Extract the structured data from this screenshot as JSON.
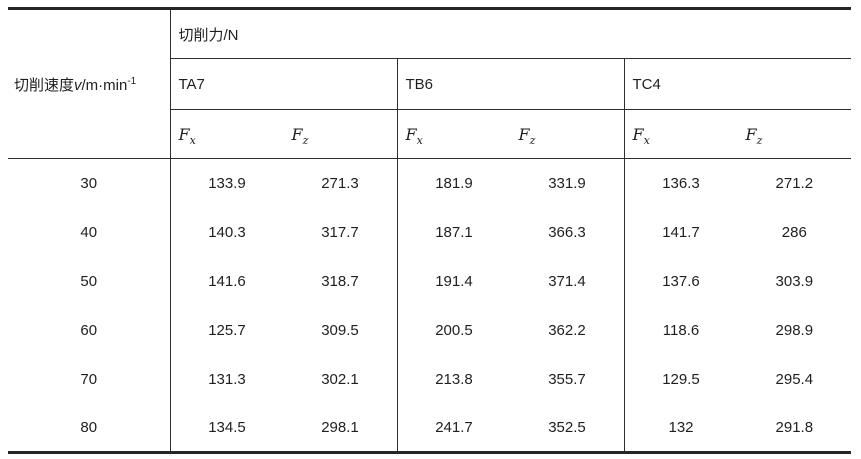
{
  "colors": {
    "background": "#ffffff",
    "text": "#1f1f1f",
    "line": "#2f2f2f",
    "line_strong": "#262626"
  },
  "table": {
    "speed_header": {
      "label": "切削速度",
      "symbol": "v",
      "unit": "/m·min",
      "exponent": "-1"
    },
    "force_header": "切削力/N",
    "materials": [
      "TA7",
      "TB6",
      "TC4"
    ],
    "force_components": [
      {
        "base": "F",
        "sub": "x"
      },
      {
        "base": "F",
        "sub": "z"
      }
    ],
    "rows": [
      {
        "speed": "30",
        "values": [
          "133.9",
          "271.3",
          "181.9",
          "331.9",
          "136.3",
          "271.2"
        ]
      },
      {
        "speed": "40",
        "values": [
          "140.3",
          "317.7",
          "187.1",
          "366.3",
          "141.7",
          "286"
        ]
      },
      {
        "speed": "50",
        "values": [
          "141.6",
          "318.7",
          "191.4",
          "371.4",
          "137.6",
          "303.9"
        ]
      },
      {
        "speed": "60",
        "values": [
          "125.7",
          "309.5",
          "200.5",
          "362.2",
          "118.6",
          "298.9"
        ]
      },
      {
        "speed": "70",
        "values": [
          "131.3",
          "302.1",
          "213.8",
          "355.7",
          "129.5",
          "295.4"
        ]
      },
      {
        "speed": "80",
        "values": [
          "134.5",
          "298.1",
          "241.7",
          "352.5",
          "132",
          "291.8"
        ]
      }
    ]
  },
  "chart_data": {
    "type": "table",
    "title": "切削力/N",
    "row_header": "切削速度v/m·min⁻¹",
    "x": [
      30,
      40,
      50,
      60,
      70,
      80
    ],
    "materials": [
      "TA7",
      "TB6",
      "TC4"
    ],
    "sub_columns": [
      "Fx",
      "Fz"
    ],
    "series": [
      {
        "name": "TA7 Fx",
        "values": [
          133.9,
          140.3,
          141.6,
          125.7,
          131.3,
          134.5
        ]
      },
      {
        "name": "TA7 Fz",
        "values": [
          271.3,
          317.7,
          318.7,
          309.5,
          302.1,
          298.1
        ]
      },
      {
        "name": "TB6 Fx",
        "values": [
          181.9,
          187.1,
          191.4,
          200.5,
          213.8,
          241.7
        ]
      },
      {
        "name": "TB6 Fz",
        "values": [
          331.9,
          366.3,
          371.4,
          362.2,
          355.7,
          352.5
        ]
      },
      {
        "name": "TC4 Fx",
        "values": [
          136.3,
          141.7,
          137.6,
          118.6,
          129.5,
          132
        ]
      },
      {
        "name": "TC4 Fz",
        "values": [
          271.2,
          286,
          303.9,
          298.9,
          295.4,
          291.8
        ]
      }
    ]
  }
}
